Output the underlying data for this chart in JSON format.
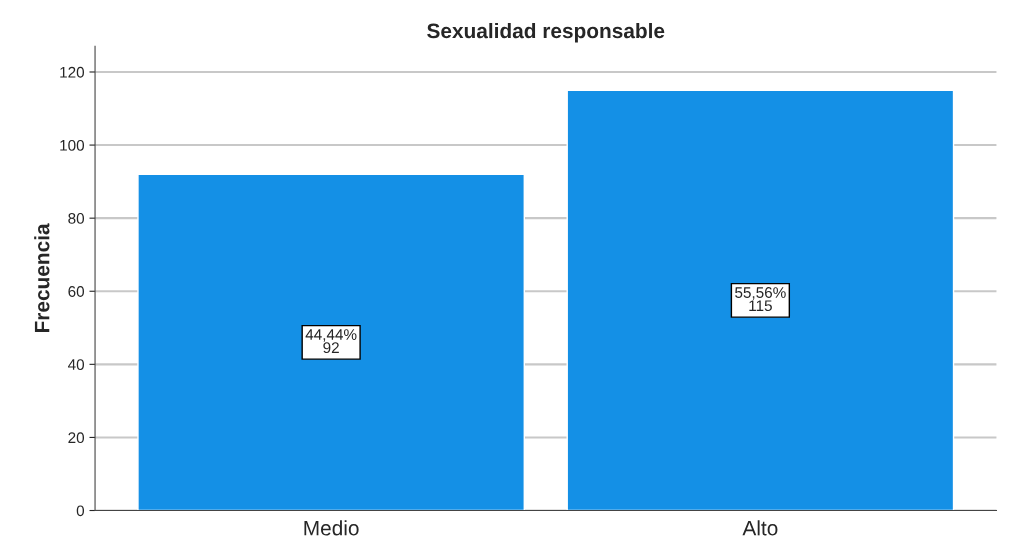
{
  "chart_data": {
    "type": "bar",
    "title": "Sexualidad responsable",
    "ylabel": "Frecuencia",
    "categories": [
      "Medio",
      "Alto"
    ],
    "values": [
      92,
      115
    ],
    "color": "#1490e6",
    "value_labels": [
      "44,44%\n92",
      "55,56%\n115"
    ],
    "ylim": [
      0,
      127
    ],
    "yticks": [
      0,
      20,
      40,
      60,
      80,
      100,
      120
    ],
    "grid": "y"
  }
}
